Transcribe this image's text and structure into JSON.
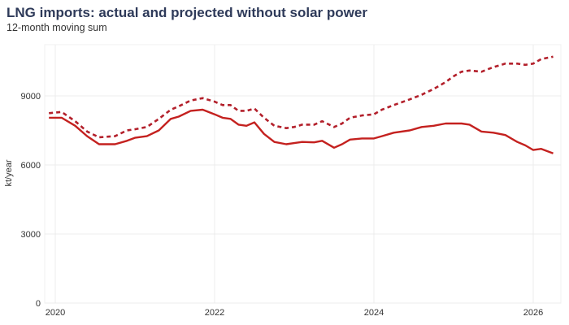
{
  "chart_data": {
    "type": "line",
    "title": "LNG imports: actual and projected without solar power",
    "subtitle": "12-month moving sum",
    "xlabel": "",
    "ylabel": "kt/year",
    "xlim": [
      2019.85,
      2026.35
    ],
    "ylim": [
      0,
      11200
    ],
    "xticks": [
      2020,
      2022,
      2024,
      2026
    ],
    "yticks": [
      0,
      3000,
      6000,
      9000
    ],
    "grid": true,
    "x": [
      2019.92,
      2020.08,
      2020.25,
      2020.4,
      2020.55,
      2020.75,
      2020.9,
      2021.0,
      2021.15,
      2021.3,
      2021.45,
      2021.55,
      2021.7,
      2021.85,
      2022.0,
      2022.1,
      2022.2,
      2022.3,
      2022.4,
      2022.5,
      2022.62,
      2022.75,
      2022.9,
      2023.0,
      2023.1,
      2023.25,
      2023.35,
      2023.5,
      2023.6,
      2023.7,
      2023.85,
      2024.0,
      2024.1,
      2024.25,
      2024.45,
      2024.6,
      2024.75,
      2024.9,
      2025.0,
      2025.1,
      2025.2,
      2025.35,
      2025.5,
      2025.65,
      2025.8,
      2025.9,
      2026.0,
      2026.1,
      2026.25
    ],
    "series": [
      {
        "name": "Actual",
        "color": "#c4211f",
        "dashed": false,
        "values": [
          8050,
          8050,
          7700,
          7250,
          6900,
          6900,
          7050,
          7180,
          7250,
          7500,
          8000,
          8100,
          8350,
          8400,
          8200,
          8050,
          8000,
          7750,
          7700,
          7850,
          7350,
          7000,
          6900,
          6950,
          7000,
          6980,
          7050,
          6750,
          6900,
          7100,
          7150,
          7150,
          7250,
          7400,
          7500,
          7650,
          7700,
          7800,
          7800,
          7800,
          7750,
          7450,
          7400,
          7300,
          7000,
          6850,
          6650,
          6700,
          6500
        ]
      },
      {
        "name": "Projected without solar",
        "color": "#b3202b",
        "dashed": true,
        "values": [
          8250,
          8300,
          7900,
          7450,
          7200,
          7250,
          7500,
          7550,
          7650,
          8000,
          8400,
          8550,
          8800,
          8900,
          8750,
          8600,
          8600,
          8350,
          8350,
          8450,
          8050,
          7700,
          7600,
          7650,
          7750,
          7750,
          7900,
          7650,
          7800,
          8050,
          8150,
          8200,
          8400,
          8600,
          8850,
          9050,
          9300,
          9600,
          9850,
          10050,
          10100,
          10050,
          10250,
          10400,
          10400,
          10350,
          10400,
          10600,
          10700
        ]
      }
    ]
  }
}
